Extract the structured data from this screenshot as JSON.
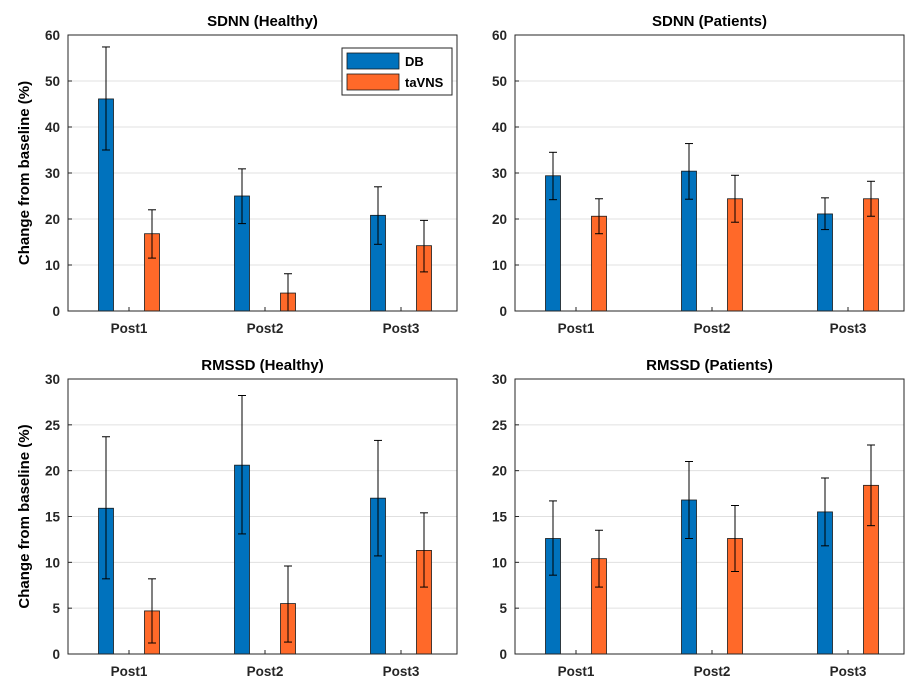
{
  "colors": {
    "DB": "#0072BD",
    "taVNS": "#FF6929",
    "axis": "#262626",
    "grid": "#e0e0e0"
  },
  "legend": {
    "location": "top-right",
    "entries": [
      "DB",
      "taVNS"
    ]
  },
  "chart_data": [
    {
      "type": "bar",
      "title": "SDNN (Healthy)",
      "ylabel": "Change from baseline (%)",
      "categories": [
        "Post1",
        "Post2",
        "Post3"
      ],
      "ylim": [
        0,
        60
      ],
      "yticks": [
        0,
        10,
        20,
        30,
        40,
        50,
        60
      ],
      "grid": true,
      "series": [
        {
          "name": "DB",
          "values": [
            46.1,
            25.0,
            20.8
          ],
          "err_low": [
            35.0,
            19.0,
            14.5
          ],
          "err_high": [
            57.4,
            30.9,
            27.0
          ]
        },
        {
          "name": "taVNS",
          "values": [
            16.8,
            3.9,
            14.2
          ],
          "err_low": [
            11.5,
            0.0,
            8.5
          ],
          "err_high": [
            22.0,
            8.1,
            19.7
          ]
        }
      ]
    },
    {
      "type": "bar",
      "title": "SDNN (Patients)",
      "ylabel": "",
      "categories": [
        "Post1",
        "Post2",
        "Post3"
      ],
      "ylim": [
        0,
        60
      ],
      "yticks": [
        0,
        10,
        20,
        30,
        40,
        50,
        60
      ],
      "grid": true,
      "series": [
        {
          "name": "DB",
          "values": [
            29.4,
            30.4,
            21.1
          ],
          "err_low": [
            24.2,
            24.3,
            17.7
          ],
          "err_high": [
            34.5,
            36.4,
            24.6
          ]
        },
        {
          "name": "taVNS",
          "values": [
            20.6,
            24.4,
            24.4
          ],
          "err_low": [
            16.8,
            19.3,
            20.6
          ],
          "err_high": [
            24.4,
            29.5,
            28.2
          ]
        }
      ]
    },
    {
      "type": "bar",
      "title": "RMSSD (Healthy)",
      "ylabel": "Change from baseline (%)",
      "categories": [
        "Post1",
        "Post2",
        "Post3"
      ],
      "ylim": [
        0,
        30
      ],
      "yticks": [
        0,
        5,
        10,
        15,
        20,
        25,
        30
      ],
      "grid": true,
      "series": [
        {
          "name": "DB",
          "values": [
            15.9,
            20.6,
            17.0
          ],
          "err_low": [
            8.2,
            13.1,
            10.7
          ],
          "err_high": [
            23.7,
            28.2,
            23.3
          ]
        },
        {
          "name": "taVNS",
          "values": [
            4.7,
            5.5,
            11.3
          ],
          "err_low": [
            1.2,
            1.3,
            7.3
          ],
          "err_high": [
            8.2,
            9.6,
            15.4
          ]
        }
      ]
    },
    {
      "type": "bar",
      "title": "RMSSD (Patients)",
      "ylabel": "",
      "categories": [
        "Post1",
        "Post2",
        "Post3"
      ],
      "ylim": [
        0,
        30
      ],
      "yticks": [
        0,
        5,
        10,
        15,
        20,
        25,
        30
      ],
      "grid": true,
      "series": [
        {
          "name": "DB",
          "values": [
            12.6,
            16.8,
            15.5
          ],
          "err_low": [
            8.6,
            12.6,
            11.8
          ],
          "err_high": [
            16.7,
            21.0,
            19.2
          ]
        },
        {
          "name": "taVNS",
          "values": [
            10.4,
            12.6,
            18.4
          ],
          "err_low": [
            7.3,
            9.0,
            14.0
          ],
          "err_high": [
            13.5,
            16.2,
            22.8
          ]
        }
      ]
    }
  ]
}
